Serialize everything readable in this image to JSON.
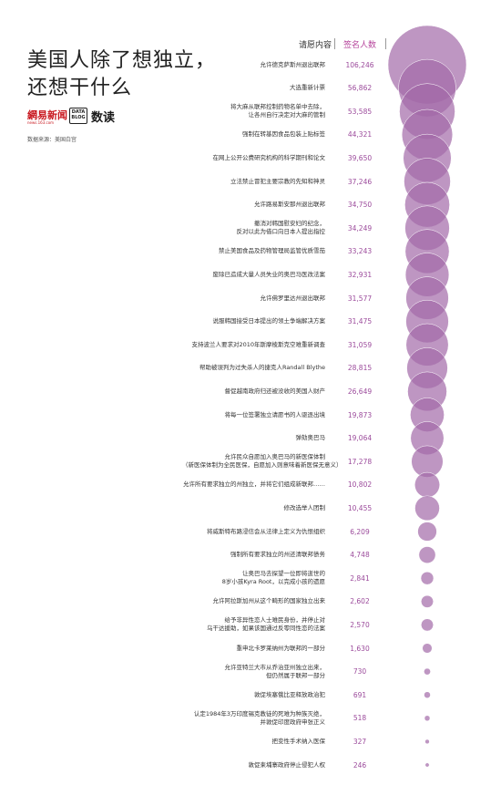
{
  "title": {
    "line1": "美国人除了想独立，",
    "line2": "还想干什么"
  },
  "logos": {
    "netease": "網易新闻",
    "netease_sub": "news.163.com",
    "datablog_line1": "DATA",
    "datablog_line2": "BLOG",
    "shudu": "数读"
  },
  "source": "数据来源：美国白宫",
  "colors": {
    "bubble": "#a36aa8",
    "value_text": "#9b4a9b",
    "header_accent": "#b6459c"
  },
  "chart_data": {
    "type": "bubble",
    "column_headers": {
      "petition": "请愿内容",
      "signers": "签名人数"
    },
    "rows": [
      {
        "label_lines": [
          "允许德克萨斯州退出联邦"
        ],
        "value": 106246
      },
      {
        "label_lines": [
          "大选重新计票"
        ],
        "value": 56862
      },
      {
        "label_lines": [
          "将大麻从联邦控制药物名单中去除，",
          "让各州自行决定对大麻的管制"
        ],
        "value": 53585
      },
      {
        "label_lines": [
          "强制在转基因食品包装上贴标签"
        ],
        "value": 44321
      },
      {
        "label_lines": [
          "在网上公开公费研究机构的科学期刊和论文"
        ],
        "value": 39650
      },
      {
        "label_lines": [
          "立法禁止冒犯主要宗教的先知和神灵"
        ],
        "value": 37246
      },
      {
        "label_lines": [
          "允许路易斯安那州退出联邦"
        ],
        "value": 34750
      },
      {
        "label_lines": [
          "撤消对韩国慰安妇的纪念，",
          "反对以此为借口向日本人提出指控"
        ],
        "value": 34249
      },
      {
        "label_lines": [
          "禁止美国食品及药物管理局监管优质雪茄"
        ],
        "value": 33243
      },
      {
        "label_lines": [
          "废除已造成大量人员失业的奥巴马医改法案"
        ],
        "value": 32931
      },
      {
        "label_lines": [
          "允许佛罗里达州退出联邦"
        ],
        "value": 31577
      },
      {
        "label_lines": [
          "说服韩国接受日本提出的领土争端解决方案"
        ],
        "value": 31475
      },
      {
        "label_lines": [
          "支持波兰人要求对2010年斯摩棱斯克空难重新调查"
        ],
        "value": 31059
      },
      {
        "label_lines": [
          "帮助被误判为过失杀人的捷克人Randall Blythe"
        ],
        "value": 28815
      },
      {
        "label_lines": [
          "督促越南政府归还被没收的美国人财产"
        ],
        "value": 26649
      },
      {
        "label_lines": [
          "将每一位签署独立请愿书的人驱逐出境"
        ],
        "value": 19873
      },
      {
        "label_lines": [
          "弹劾奥巴马"
        ],
        "value": 19064
      },
      {
        "label_lines": [
          "允许民众自愿加入奥巴马的新医保体制",
          "（新医保体制为全民医保，自愿加入则意味着新医保无意义）"
        ],
        "value": 17278
      },
      {
        "label_lines": [
          "允许所有要求独立的州独立，并将它们组成新联邦……"
        ],
        "value": 10802
      },
      {
        "label_lines": [
          "修改选举人团制"
        ],
        "value": 10455
      },
      {
        "label_lines": [
          "将威斯特布路浸信会从法律上定义为仇恨组织"
        ],
        "value": 6209
      },
      {
        "label_lines": [
          "强制所有要求独立的州还清联邦债务"
        ],
        "value": 4748
      },
      {
        "label_lines": [
          "让奥巴马去探望一位即将逝世的",
          "8岁小孩Kyra Root，以完成小孩的遗愿"
        ],
        "value": 2841
      },
      {
        "label_lines": [
          "允许阿拉斯加州从这个畸形的国家独立出来"
        ],
        "value": 2602
      },
      {
        "label_lines": [
          "给予非异性恋人士难民身份，并停止对",
          "乌干达援助，如果该国通过反零同性恋的法案"
        ],
        "value": 2570
      },
      {
        "label_lines": [
          "重申北卡罗莱纳州为联邦的一部分"
        ],
        "value": 1630
      },
      {
        "label_lines": [
          "允许亚特兰大市从乔治亚州独立出来，",
          "但仍然属于联邦一部分"
        ],
        "value": 730
      },
      {
        "label_lines": [
          "敦促埃塞俄比亚释放政治犯"
        ],
        "value": 691
      },
      {
        "label_lines": [
          "认定1984年3万印度锡克教徒的死难为种族灭绝，",
          "并敦促印度政府申张正义"
        ],
        "value": 518
      },
      {
        "label_lines": [
          "把变性手术纳入医保"
        ],
        "value": 327
      },
      {
        "label_lines": [
          "敦促柬埔寨政府停止侵犯人权"
        ],
        "value": 246
      }
    ]
  }
}
